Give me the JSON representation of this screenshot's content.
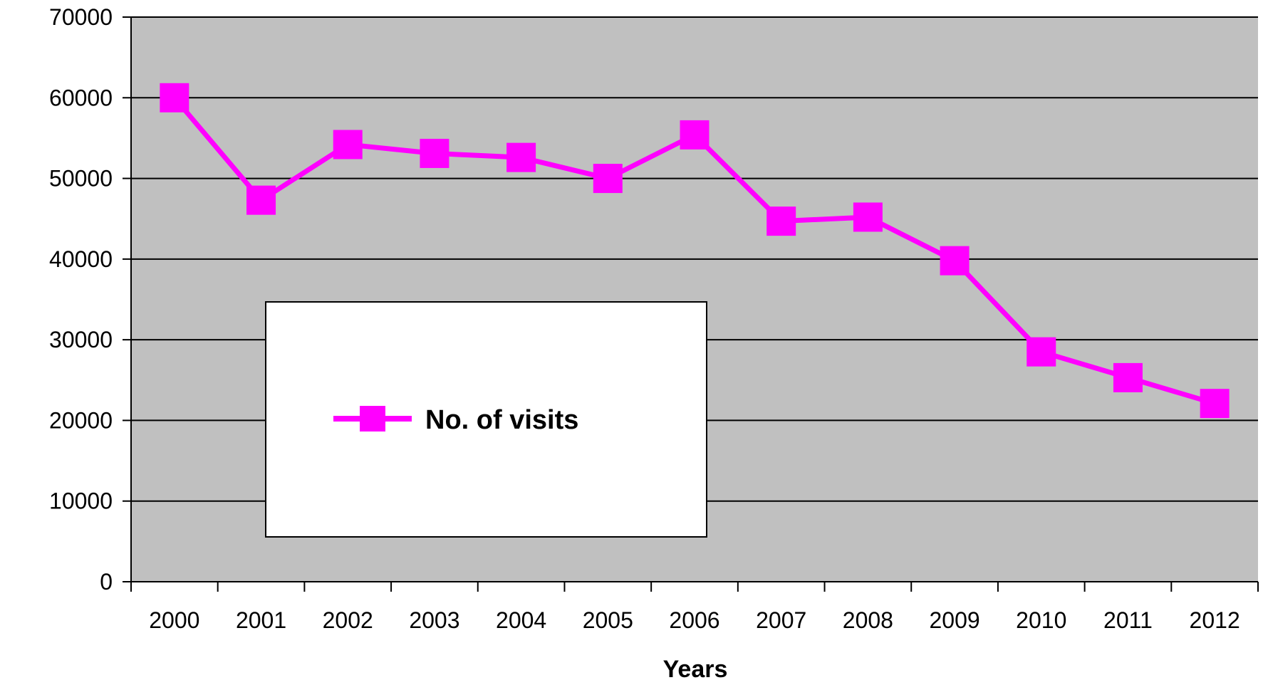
{
  "chart_data": {
    "type": "line",
    "title": "",
    "xlabel": "Years",
    "ylabel": "",
    "categories": [
      "2000",
      "2001",
      "2002",
      "2003",
      "2004",
      "2005",
      "2006",
      "2007",
      "2008",
      "2009",
      "2010",
      "2011",
      "2012"
    ],
    "series": [
      {
        "name": "No. of visits",
        "color": "#ff00ff",
        "marker": "square",
        "values": [
          60000,
          47300,
          54200,
          53100,
          52600,
          50000,
          55400,
          44700,
          45200,
          39800,
          28500,
          25300,
          22100
        ]
      }
    ],
    "ylim": [
      0,
      70000
    ],
    "yticks": [
      0,
      10000,
      20000,
      30000,
      40000,
      50000,
      60000,
      70000
    ],
    "grid": true,
    "legend_position": "center-left",
    "plot_background": "#c0c0c0"
  }
}
